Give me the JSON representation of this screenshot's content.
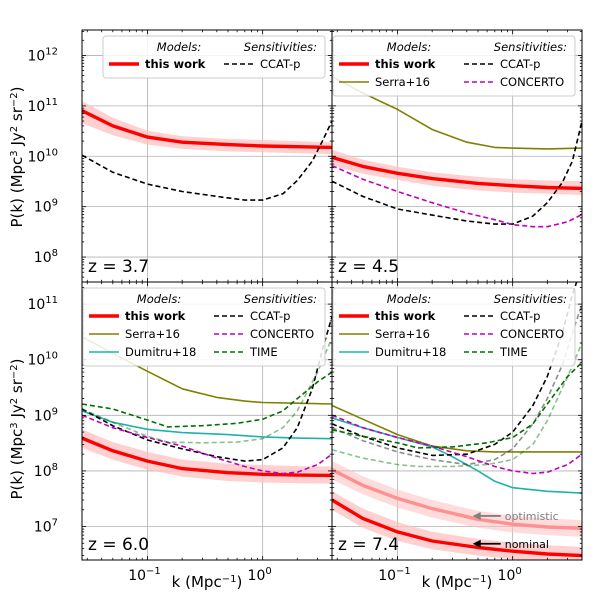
{
  "figure": {
    "xlabel": "k (Mpc⁻¹)",
    "ylabel": "P(k) (Mpc³ Jy² sr⁻²)",
    "x_ticks": [
      {
        "value": 0.1,
        "base": "10",
        "exp": "−1"
      },
      {
        "value": 1,
        "base": "10",
        "exp": "0"
      }
    ]
  },
  "legend_headers": {
    "models": "Models:",
    "sensitivities": "Sensitivities:"
  },
  "colors": {
    "this_work": "#ff0000",
    "serra": "#808000",
    "dumitru": "#20b2aa",
    "ccatp": "#000000",
    "concerto": "#c000c0",
    "time": "#007000",
    "band": "#ffc0c0"
  },
  "chart_data": [
    {
      "type": "line",
      "panel": "top-left",
      "annotation": "z = 3.7",
      "xscale": "log",
      "yscale": "log",
      "xlim": [
        0.027,
        4
      ],
      "ylim": [
        32000000.0,
        3200000000000.0
      ],
      "y_ticks": [
        {
          "value": 100000000.0,
          "base": "10",
          "exp": "8"
        },
        {
          "value": 1000000000.0,
          "base": "10",
          "exp": "9"
        },
        {
          "value": 10000000000.0,
          "base": "10",
          "exp": "10"
        },
        {
          "value": 100000000000.0,
          "base": "10",
          "exp": "11"
        },
        {
          "value": 1000000000000.0,
          "base": "10",
          "exp": "12"
        }
      ],
      "grid": true,
      "legend": {
        "placement": "top-right",
        "models": [
          "this work"
        ],
        "sensitivities": [
          "CCAT-p"
        ]
      },
      "series": [
        {
          "name": "this work",
          "style": "thick-solid",
          "color": "#ff0000",
          "x": [
            0.027,
            0.05,
            0.1,
            0.2,
            0.5,
            1,
            2,
            4
          ],
          "y": [
            80000000000.0,
            40000000000.0,
            24000000000.0,
            19000000000.0,
            17000000000.0,
            16000000000.0,
            15500000000.0,
            15000000000.0
          ],
          "band_low": [
            45000000000.0,
            26000000000.0,
            17000000000.0,
            14000000000.0,
            12500000000.0,
            12000000000.0,
            11500000000.0,
            11000000000.0
          ],
          "band_high": [
            125000000000.0,
            58000000000.0,
            32000000000.0,
            25000000000.0,
            22000000000.0,
            21000000000.0,
            20000000000.0,
            19000000000.0
          ]
        },
        {
          "name": "CCAT-p",
          "style": "dashed",
          "color": "#000000",
          "x": [
            0.027,
            0.05,
            0.1,
            0.2,
            0.4,
            0.7,
            1,
            1.5,
            2,
            2.7,
            3.3,
            4
          ],
          "y": [
            10500000000.0,
            4800000000.0,
            2800000000.0,
            2000000000.0,
            1600000000.0,
            1350000000.0,
            1350000000.0,
            1800000000.0,
            3300000000.0,
            8000000000.0,
            20000000000.0,
            50000000000.0
          ]
        }
      ]
    },
    {
      "type": "line",
      "panel": "top-right",
      "annotation": "z = 4.5",
      "xscale": "log",
      "yscale": "log",
      "xlim": [
        0.027,
        4
      ],
      "ylim": [
        32000000.0,
        3200000000000.0
      ],
      "grid": true,
      "legend": {
        "placement": "top-right",
        "models": [
          "this work",
          "Serra+16"
        ],
        "sensitivities": [
          "CCAT-p",
          "CONCERTO"
        ]
      },
      "series": [
        {
          "name": "this work",
          "style": "thick-solid",
          "color": "#ff0000",
          "x": [
            0.027,
            0.05,
            0.1,
            0.2,
            0.5,
            1,
            2,
            4
          ],
          "y": [
            9500000000.0,
            6300000000.0,
            4600000000.0,
            3600000000.0,
            2900000000.0,
            2600000000.0,
            2400000000.0,
            2300000000.0
          ],
          "band_low": [
            6500000000.0,
            4500000000.0,
            3400000000.0,
            2600000000.0,
            2100000000.0,
            1900000000.0,
            1800000000.0,
            1700000000.0
          ],
          "band_high": [
            13500000000.0,
            8500000000.0,
            6200000000.0,
            4800000000.0,
            3900000000.0,
            3500000000.0,
            3300000000.0,
            3200000000.0
          ]
        },
        {
          "name": "Serra+16",
          "style": "solid",
          "color": "#808000",
          "x": [
            0.027,
            0.05,
            0.1,
            0.2,
            0.4,
            0.7,
            1,
            2,
            4
          ],
          "y": [
            380000000000.0,
            180000000000.0,
            85000000000.0,
            34000000000.0,
            19000000000.0,
            15000000000.0,
            14500000000.0,
            14000000000.0,
            14500000000.0
          ]
        },
        {
          "name": "CCAT-p",
          "style": "dashed",
          "color": "#000000",
          "x": [
            0.027,
            0.05,
            0.1,
            0.2,
            0.4,
            0.7,
            1,
            1.5,
            2,
            2.7,
            3.3,
            4
          ],
          "y": [
            3200000000.0,
            1600000000.0,
            900000000.0,
            680000000.0,
            520000000.0,
            450000000.0,
            450000000.0,
            650000000.0,
            1200000000.0,
            3000000000.0,
            8000000000.0,
            50000000000.0
          ]
        },
        {
          "name": "CONCERTO",
          "style": "dashed",
          "color": "#c000c0",
          "x": [
            0.027,
            0.05,
            0.1,
            0.2,
            0.4,
            0.7,
            1,
            1.5,
            2,
            3,
            4
          ],
          "y": [
            6500000000.0,
            3500000000.0,
            2000000000.0,
            1200000000.0,
            750000000.0,
            550000000.0,
            440000000.0,
            400000000.0,
            400000000.0,
            500000000.0,
            700000000.0
          ]
        }
      ]
    },
    {
      "type": "line",
      "panel": "bottom-left",
      "annotation": "z = 6.0",
      "xscale": "log",
      "yscale": "log",
      "xlim": [
        0.027,
        4
      ],
      "ylim": [
        2500000.0,
        250000000000.0
      ],
      "y_ticks": [
        {
          "value": 10000000.0,
          "base": "10",
          "exp": "7"
        },
        {
          "value": 100000000.0,
          "base": "10",
          "exp": "8"
        },
        {
          "value": 1000000000.0,
          "base": "10",
          "exp": "9"
        },
        {
          "value": 10000000000.0,
          "base": "10",
          "exp": "10"
        },
        {
          "value": 100000000000.0,
          "base": "10",
          "exp": "11"
        }
      ],
      "grid": true,
      "legend": {
        "placement": "top-right",
        "models": [
          "this work",
          "Serra+16",
          "Dumitru+18"
        ],
        "sensitivities": [
          "CCAT-p",
          "CONCERTO",
          "TIME"
        ]
      },
      "series": [
        {
          "name": "this work",
          "style": "thick-solid",
          "color": "#ff0000",
          "x": [
            0.027,
            0.05,
            0.1,
            0.2,
            0.5,
            1,
            2,
            4
          ],
          "y": [
            390000000.0,
            230000000.0,
            150000000.0,
            110000000.0,
            93000000.0,
            87000000.0,
            84000000.0,
            83000000.0
          ],
          "band_low": [
            260000000.0,
            160000000.0,
            105000000.0,
            79000000.0,
            66000000.0,
            62000000.0,
            60000000.0,
            59000000.0
          ],
          "band_high": [
            560000000.0,
            330000000.0,
            220000000.0,
            160000000.0,
            135000000.0,
            128000000.0,
            122000000.0,
            120000000.0
          ]
        },
        {
          "name": "Serra+16",
          "style": "solid",
          "color": "#808000",
          "x": [
            0.027,
            0.05,
            0.1,
            0.2,
            0.4,
            0.7,
            1,
            2,
            4
          ],
          "y": [
            26000000000.0,
            13000000000.0,
            6200000000.0,
            3000000000.0,
            2100000000.0,
            1800000000.0,
            1700000000.0,
            1650000000.0,
            1600000000.0
          ]
        },
        {
          "name": "Dumitru+18",
          "style": "solid",
          "color": "#20b2aa",
          "x": [
            0.027,
            0.05,
            0.1,
            0.2,
            0.5,
            1,
            2,
            4
          ],
          "y": [
            1200000000.0,
            750000000.0,
            560000000.0,
            490000000.0,
            450000000.0,
            410000000.0,
            390000000.0,
            380000000.0
          ]
        },
        {
          "name": "CCAT-p",
          "style": "dashed",
          "color": "#000000",
          "x": [
            0.027,
            0.05,
            0.1,
            0.2,
            0.4,
            0.7,
            1,
            1.5,
            2,
            2.7,
            3.3,
            4
          ],
          "y": [
            1300000000.0,
            650000000.0,
            360000000.0,
            250000000.0,
            180000000.0,
            150000000.0,
            160000000.0,
            260000000.0,
            600000000.0,
            3000000000.0,
            15000000000.0,
            60000000000.0
          ]
        },
        {
          "name": "CONCERTO",
          "style": "dashed",
          "color": "#c000c0",
          "x": [
            0.027,
            0.05,
            0.1,
            0.2,
            0.4,
            0.7,
            1,
            1.5,
            2,
            3,
            4
          ],
          "y": [
            1000000000.0,
            600000000.0,
            400000000.0,
            280000000.0,
            170000000.0,
            120000000.0,
            100000000.0,
            90000000.0,
            95000000.0,
            130000000.0,
            200000000.0
          ]
        },
        {
          "name": "TIME",
          "style": "dashed",
          "color": "#007000",
          "x": [
            0.027,
            0.05,
            0.1,
            0.15,
            0.3,
            0.6,
            1,
            1.5,
            2,
            3,
            4
          ],
          "y": [
            1600000000.0,
            1300000000.0,
            820000000.0,
            620000000.0,
            650000000.0,
            720000000.0,
            850000000.0,
            1200000000.0,
            2000000000.0,
            4000000000.0,
            6000000000.0
          ]
        },
        {
          "name": "",
          "style": "dashed-light",
          "color": "#007000",
          "x": [
            0.027,
            0.05,
            0.1,
            0.15,
            0.3,
            0.6,
            1,
            1.5,
            2,
            3,
            4
          ],
          "y": [
            1300000000.0,
            750000000.0,
            420000000.0,
            330000000.0,
            320000000.0,
            330000000.0,
            380000000.0,
            600000000.0,
            1200000000.0,
            6000000000.0,
            25000000000.0
          ]
        }
      ]
    },
    {
      "type": "line",
      "panel": "bottom-right",
      "annotation": "z = 7.4",
      "xscale": "log",
      "yscale": "log",
      "xlim": [
        0.027,
        4
      ],
      "ylim": [
        2500000.0,
        250000000000.0
      ],
      "grid": true,
      "legend": {
        "placement": "top-right",
        "models": [
          "this work",
          "Serra+16",
          "Dumitru+18"
        ],
        "sensitivities": [
          "CCAT-p",
          "CONCERTO",
          "TIME"
        ]
      },
      "labels": [
        {
          "text": "optimistic",
          "arrow": "left",
          "color": "#808080",
          "x": 0.45,
          "y": 15500000.0
        },
        {
          "text": "nominal",
          "arrow": "left",
          "color": "#000000",
          "x": 0.45,
          "y": 4900000.0
        }
      ],
      "series": [
        {
          "name": "this work",
          "style": "thick-solid",
          "color": "#ff0000",
          "x": [
            0.027,
            0.05,
            0.1,
            0.2,
            0.5,
            1,
            2,
            4
          ],
          "y": [
            30000000.0,
            14000000.0,
            8000000.0,
            5500000.0,
            4200000.0,
            3600000.0,
            3200000.0,
            3000000.0
          ],
          "band_low": [
            20000000.0,
            9500000.0,
            5500000.0,
            3900000.0,
            3000000.0,
            2600000.0,
            2300000.0,
            2200000.0
          ],
          "band_high": [
            43000000.0,
            21000000.0,
            12000000.0,
            8000000.0,
            6000000.0,
            5100000.0,
            4600000.0,
            4300000.0
          ]
        },
        {
          "name": "",
          "style": "thick-light",
          "color": "#ff9090",
          "x": [
            0.027,
            0.05,
            0.1,
            0.2,
            0.5,
            1,
            2,
            4
          ],
          "y": [
            105000000.0,
            55000000.0,
            32000000.0,
            21000000.0,
            13500000.0,
            11000000.0,
            9800000.0,
            9300000.0
          ],
          "band_low": [
            70000000.0,
            38000000.0,
            22000000.0,
            14500000.0,
            9500000.0,
            7800000.0,
            7000000.0,
            6500000.0
          ],
          "band_high": [
            150000000.0,
            80000000.0,
            46000000.0,
            30000000.0,
            19000000.0,
            15500000.0,
            14000000.0,
            13000000.0
          ]
        },
        {
          "name": "Serra+16",
          "style": "solid",
          "color": "#808000",
          "x": [
            0.027,
            0.05,
            0.1,
            0.2,
            0.4,
            0.7,
            1,
            2,
            4
          ],
          "y": [
            1500000000.0,
            850000000.0,
            450000000.0,
            280000000.0,
            230000000.0,
            220000000.0,
            220000000.0,
            220000000.0,
            220000000.0
          ]
        },
        {
          "name": "Dumitru+18",
          "style": "solid",
          "color": "#20b2aa",
          "x": [
            0.027,
            0.05,
            0.1,
            0.2,
            0.3,
            0.5,
            0.7,
            1,
            2,
            4
          ],
          "y": [
            900000000.0,
            600000000.0,
            400000000.0,
            270000000.0,
            180000000.0,
            100000000.0,
            65000000.0,
            50000000.0,
            43000000.0,
            40000000.0
          ]
        },
        {
          "name": "CCAT-p",
          "style": "dashed",
          "color": "#000000",
          "x": [
            0.027,
            0.05,
            0.1,
            0.2,
            0.4,
            0.7,
            1,
            1.5,
            2,
            2.7,
            3.3,
            3.6
          ],
          "y": [
            700000000.0,
            420000000.0,
            260000000.0,
            190000000.0,
            200000000.0,
            300000000.0,
            500000000.0,
            1500000000.0,
            5000000000.0,
            30000000000.0,
            150000000000.0,
            250000000000.0
          ]
        },
        {
          "name": "",
          "style": "dashed-light",
          "color": "#000000",
          "x": [
            0.027,
            0.05,
            0.1,
            0.2,
            0.4,
            0.7,
            1,
            1.5,
            2,
            2.7,
            3.3,
            4
          ],
          "y": [
            600000000.0,
            350000000.0,
            220000000.0,
            160000000.0,
            130000000.0,
            160000000.0,
            250000000.0,
            700000000.0,
            2000000000.0,
            8000000000.0,
            30000000000.0,
            100000000000.0
          ]
        },
        {
          "name": "CONCERTO",
          "style": "dashed",
          "color": "#c000c0",
          "x": [
            0.027,
            0.05,
            0.1,
            0.2,
            0.4,
            0.7,
            1,
            1.5,
            2,
            3,
            4
          ],
          "y": [
            1000000000.0,
            600000000.0,
            400000000.0,
            280000000.0,
            180000000.0,
            120000000.0,
            100000000.0,
            90000000.0,
            95000000.0,
            130000000.0,
            200000000.0
          ]
        },
        {
          "name": "TIME",
          "style": "dashed",
          "color": "#007000",
          "x": [
            0.027,
            0.05,
            0.1,
            0.15,
            0.3,
            0.6,
            1,
            1.5,
            2,
            3,
            4
          ],
          "y": [
            550000000.0,
            420000000.0,
            320000000.0,
            260000000.0,
            270000000.0,
            320000000.0,
            400000000.0,
            700000000.0,
            1600000000.0,
            5000000000.0,
            9000000000.0
          ]
        },
        {
          "name": "",
          "style": "dashed-light",
          "color": "#007000",
          "x": [
            0.027,
            0.05,
            0.1,
            0.15,
            0.3,
            0.6,
            1,
            1.5,
            2,
            3,
            4
          ],
          "y": [
            240000000.0,
            170000000.0,
            130000000.0,
            120000000.0,
            120000000.0,
            130000000.0,
            160000000.0,
            300000000.0,
            800000000.0,
            5000000000.0,
            20000000000.0
          ]
        }
      ]
    }
  ]
}
